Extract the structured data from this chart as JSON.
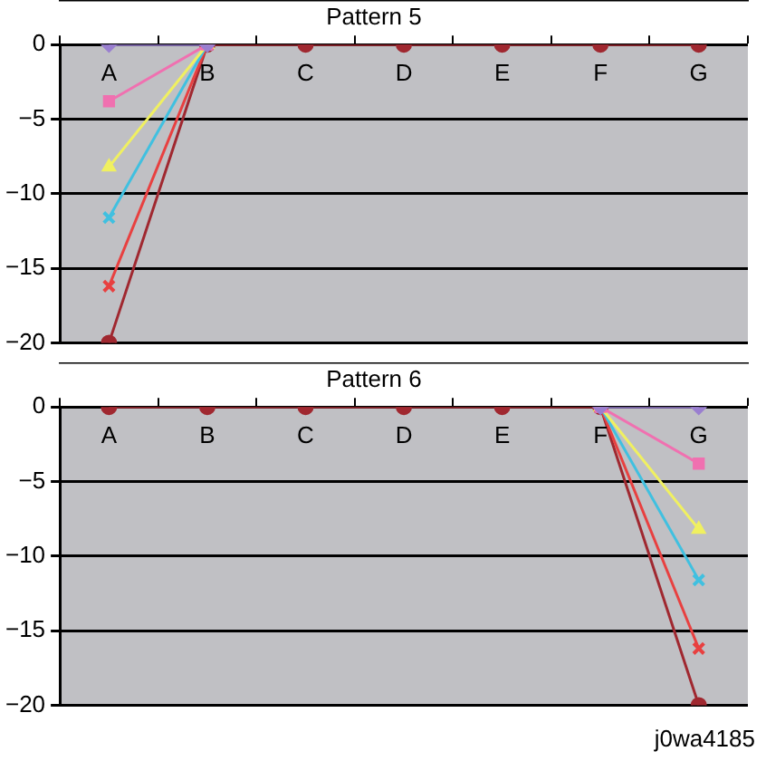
{
  "chart_data": [
    {
      "type": "line",
      "title": "Pattern 5",
      "categories": [
        "A",
        "B",
        "C",
        "D",
        "E",
        "F",
        "G"
      ],
      "ylim": [
        -20,
        0
      ],
      "yticks": [
        0,
        -5,
        -10,
        -15,
        -20
      ],
      "grid": "y",
      "legend": false,
      "series": [
        {
          "color": "#9a7fd0",
          "marker": "diamond",
          "values": [
            0,
            0,
            null,
            null,
            null,
            null,
            null
          ]
        },
        {
          "color": "#f070b0",
          "marker": "square",
          "values": [
            -3.8,
            0,
            null,
            null,
            null,
            null,
            null
          ]
        },
        {
          "color": "#f0f060",
          "marker": "triangle",
          "values": [
            -8.2,
            0,
            null,
            null,
            null,
            null,
            null
          ]
        },
        {
          "color": "#40c0e0",
          "marker": "cross",
          "values": [
            -11.6,
            0,
            null,
            null,
            null,
            null,
            null
          ]
        },
        {
          "color": "#e84040",
          "marker": "cross",
          "values": [
            -16.2,
            0,
            null,
            null,
            null,
            null,
            null
          ]
        },
        {
          "color": "#a02830",
          "marker": "circle",
          "values": [
            -20,
            0,
            0,
            0,
            0,
            0,
            0
          ]
        }
      ]
    },
    {
      "type": "line",
      "title": "Pattern 6",
      "categories": [
        "A",
        "B",
        "C",
        "D",
        "E",
        "F",
        "G"
      ],
      "ylim": [
        -20,
        0
      ],
      "yticks": [
        0,
        -5,
        -10,
        -15,
        -20
      ],
      "grid": "y",
      "legend": false,
      "annotations": [
        "j0wa4185"
      ],
      "series": [
        {
          "color": "#9a7fd0",
          "marker": "diamond",
          "values": [
            null,
            null,
            null,
            null,
            null,
            0,
            0
          ]
        },
        {
          "color": "#f070b0",
          "marker": "square",
          "values": [
            null,
            null,
            null,
            null,
            null,
            0,
            -3.8
          ]
        },
        {
          "color": "#f0f060",
          "marker": "triangle",
          "values": [
            null,
            null,
            null,
            null,
            null,
            0,
            -8.2
          ]
        },
        {
          "color": "#40c0e0",
          "marker": "cross",
          "values": [
            null,
            null,
            null,
            null,
            null,
            0,
            -11.6
          ]
        },
        {
          "color": "#e84040",
          "marker": "cross",
          "values": [
            null,
            null,
            null,
            null,
            null,
            0,
            -16.2
          ]
        },
        {
          "color": "#a02830",
          "marker": "circle",
          "values": [
            0,
            0,
            0,
            0,
            0,
            0,
            -20
          ]
        }
      ]
    }
  ]
}
